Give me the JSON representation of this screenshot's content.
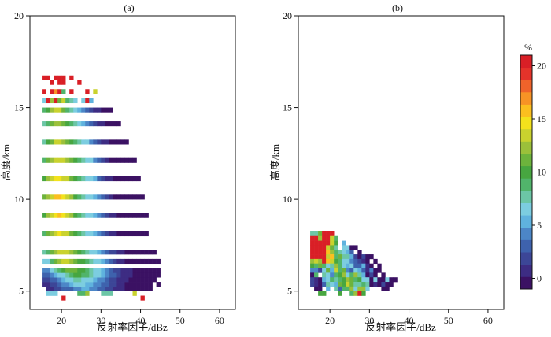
{
  "chart_data": [
    {
      "type": "heatmap",
      "panel_label": "(a)",
      "xlabel": "反射率因子/dBz",
      "ylabel": "高度/km",
      "xlim": [
        12,
        64
      ],
      "ylim": [
        4,
        20
      ],
      "x_ticks": [
        20,
        30,
        40,
        50,
        60
      ],
      "y_ticks": [
        5,
        10,
        15,
        20
      ],
      "cell_size": {
        "dbz": 1,
        "km": 0.25
      },
      "rows": [
        {
          "y": 4.75,
          "x_start": 16,
          "values": [
            7,
            7,
            7,
            null,
            null,
            null,
            null,
            null,
            9,
            9,
            12,
            null,
            null,
            null,
            8,
            8,
            8,
            null,
            null,
            null,
            null,
            null,
            13
          ]
        },
        {
          "y": 5.0,
          "x_start": 16,
          "values": [
            1,
            1,
            2,
            2,
            3,
            3,
            3,
            4,
            4,
            5,
            5,
            4,
            4,
            3,
            3,
            2,
            2,
            1,
            1,
            1,
            0,
            0,
            0,
            0,
            0,
            0,
            0
          ]
        },
        {
          "y": 5.25,
          "x_start": 15,
          "values": [
            1,
            1,
            2,
            2,
            3,
            4,
            4,
            5,
            6,
            6,
            6,
            5,
            5,
            4,
            4,
            3,
            3,
            2,
            2,
            1,
            1,
            0,
            0,
            0,
            0,
            0,
            0,
            0,
            null,
            0
          ]
        },
        {
          "y": 5.5,
          "x_start": 15,
          "values": [
            2,
            2,
            3,
            3,
            4,
            5,
            6,
            7,
            8,
            8,
            7,
            7,
            6,
            5,
            4,
            4,
            3,
            2,
            2,
            1,
            1,
            1,
            0,
            0,
            0,
            0,
            0,
            0,
            0
          ]
        },
        {
          "y": 5.75,
          "x_start": 15,
          "values": [
            3,
            3,
            4,
            5,
            6,
            7,
            8,
            9,
            10,
            10,
            9,
            9,
            8,
            7,
            6,
            5,
            4,
            3,
            3,
            2,
            1,
            1,
            1,
            0,
            0,
            0,
            0,
            0,
            0,
            0
          ]
        },
        {
          "y": 6.0,
          "x_start": 15,
          "values": [
            4,
            4,
            6,
            8,
            9,
            10,
            11,
            11,
            11,
            10,
            10,
            9,
            8,
            7,
            6,
            5,
            4,
            3,
            2,
            2,
            1,
            1,
            1,
            0,
            0,
            0,
            0,
            0,
            0,
            0
          ]
        },
        {
          "y": 6.5,
          "x_start": 15,
          "values": [
            6,
            7,
            9,
            11,
            12,
            13,
            13,
            12,
            11,
            10,
            10,
            9,
            8,
            7,
            6,
            5,
            4,
            3,
            2,
            1,
            1,
            0,
            0,
            0,
            0,
            0,
            0,
            0,
            0,
            0
          ]
        },
        {
          "y": 7.0,
          "x_start": 15,
          "values": [
            8,
            9,
            11,
            12,
            14,
            14,
            13,
            12,
            11,
            10,
            9,
            8,
            7,
            6,
            5,
            4,
            3,
            2,
            2,
            1,
            1,
            0,
            0,
            0,
            0,
            0,
            0,
            0,
            0
          ]
        },
        {
          "y": 8.0,
          "x_start": 15,
          "values": [
            9,
            11,
            12,
            14,
            15,
            14,
            13,
            11,
            10,
            9,
            8,
            7,
            6,
            5,
            4,
            3,
            2,
            1,
            1,
            0,
            0,
            0,
            0,
            0,
            0,
            0,
            0
          ]
        },
        {
          "y": 9.0,
          "x_start": 15,
          "values": [
            10,
            12,
            13,
            15,
            16,
            15,
            13,
            12,
            10,
            9,
            8,
            7,
            6,
            5,
            4,
            3,
            2,
            1,
            1,
            0,
            0,
            0,
            0,
            0,
            0,
            0,
            0
          ]
        },
        {
          "y": 10.0,
          "x_start": 15,
          "values": [
            11,
            12,
            14,
            16,
            16,
            15,
            13,
            12,
            10,
            9,
            8,
            7,
            6,
            5,
            4,
            3,
            2,
            1,
            0,
            0,
            0,
            0,
            0,
            0,
            0,
            0
          ]
        },
        {
          "y": 11.0,
          "x_start": 15,
          "values": [
            10,
            12,
            14,
            15,
            15,
            14,
            13,
            11,
            10,
            9,
            8,
            7,
            6,
            5,
            3,
            2,
            1,
            1,
            0,
            0,
            0,
            0,
            0,
            0,
            0
          ]
        },
        {
          "y": 12.0,
          "x_start": 15,
          "values": [
            9,
            11,
            12,
            14,
            14,
            13,
            12,
            11,
            10,
            9,
            8,
            7,
            6,
            4,
            3,
            2,
            1,
            0,
            0,
            0,
            0,
            0,
            0,
            0
          ]
        },
        {
          "y": 13.0,
          "x_start": 15,
          "values": [
            8,
            10,
            11,
            13,
            13,
            12,
            11,
            10,
            9,
            8,
            7,
            6,
            4,
            3,
            2,
            1,
            1,
            0,
            0,
            0,
            0,
            0
          ]
        },
        {
          "y": 14.0,
          "x_start": 15,
          "values": [
            8,
            9,
            11,
            12,
            12,
            11,
            10,
            9,
            8,
            7,
            5,
            4,
            3,
            2,
            1,
            1,
            0,
            0,
            0,
            0
          ]
        },
        {
          "y": 14.75,
          "x_start": 15,
          "values": [
            9,
            10,
            12,
            14,
            13,
            11,
            9,
            8,
            6,
            5,
            4,
            3,
            2,
            1,
            1,
            0,
            0,
            0
          ]
        },
        {
          "y": 15.25,
          "x_start": 15,
          "values": [
            7,
            20,
            12,
            20,
            11,
            14,
            9,
            8,
            7,
            null,
            7,
            20,
            5,
            null,
            null,
            null,
            null
          ]
        },
        {
          "y": 15.75,
          "x_start": 15,
          "values": [
            20,
            null,
            20,
            17,
            20,
            9,
            null,
            20,
            null,
            null,
            null,
            20,
            null,
            13
          ]
        },
        {
          "y": 16.25,
          "x_start": 15,
          "values": [
            null,
            null,
            20,
            null,
            20,
            20,
            null,
            null,
            null,
            20,
            null,
            null,
            null
          ]
        },
        {
          "y": 16.5,
          "x_start": 15,
          "values": [
            20,
            20,
            null,
            20,
            20,
            20,
            null,
            20,
            null,
            null,
            null,
            null
          ]
        },
        {
          "y": 4.5,
          "x_start": 20,
          "values": [
            20,
            null,
            null,
            null,
            null,
            null,
            null,
            null,
            null,
            null,
            null,
            null,
            null,
            null,
            null,
            null,
            null,
            null,
            null,
            null,
            20
          ]
        }
      ]
    },
    {
      "type": "heatmap",
      "panel_label": "(b)",
      "xlabel": "反射率因子/dBz",
      "ylabel": "高度/km",
      "xlim": [
        12,
        64
      ],
      "ylim": [
        4,
        20
      ],
      "x_ticks": [
        20,
        30,
        40,
        50,
        60
      ],
      "y_ticks": [
        5,
        10,
        15,
        20
      ],
      "cell_size": {
        "dbz": 1,
        "km": 0.25
      },
      "rows": [
        {
          "y": 8.0,
          "x_start": 15,
          "values": [
            8,
            8,
            11,
            20,
            20,
            20,
            null,
            null
          ]
        },
        {
          "y": 7.75,
          "x_start": 15,
          "values": [
            20,
            20,
            12,
            20,
            20,
            13,
            9,
            null
          ]
        },
        {
          "y": 7.5,
          "x_start": 15,
          "values": [
            20,
            20,
            20,
            20,
            20,
            13,
            10,
            null,
            5
          ]
        },
        {
          "y": 7.25,
          "x_start": 15,
          "values": [
            20,
            20,
            20,
            20,
            14,
            11,
            8,
            null,
            7,
            7,
            0,
            0
          ]
        },
        {
          "y": 7.0,
          "x_start": 15,
          "values": [
            20,
            20,
            20,
            20,
            16,
            12,
            9,
            8,
            6,
            5,
            3,
            null,
            0
          ]
        },
        {
          "y": 6.75,
          "x_start": 15,
          "values": [
            20,
            20,
            20,
            20,
            13,
            16,
            9,
            11,
            8,
            8,
            5,
            2,
            0,
            2,
            0,
            0
          ]
        },
        {
          "y": 6.5,
          "x_start": 15,
          "values": [
            12,
            13,
            12,
            20,
            16,
            14,
            10,
            9,
            7,
            6,
            4,
            3,
            2,
            1,
            0,
            null,
            0
          ]
        },
        {
          "y": 6.25,
          "x_start": 15,
          "values": [
            10,
            9,
            11,
            9,
            7,
            8,
            12,
            9,
            7,
            5,
            6,
            3,
            3,
            5,
            1,
            0,
            null,
            0
          ]
        },
        {
          "y": 6.0,
          "x_start": 15,
          "values": [
            4,
            4,
            2,
            7,
            11,
            5,
            13,
            9,
            11,
            4,
            3,
            6,
            5,
            3,
            1,
            4,
            0,
            0
          ]
        },
        {
          "y": 5.75,
          "x_start": 15,
          "values": [
            0,
            9,
            null,
            8,
            7,
            4,
            9,
            10,
            12,
            7,
            9,
            12,
            8,
            5,
            0,
            2,
            0,
            null,
            0
          ]
        },
        {
          "y": 5.5,
          "x_start": 15,
          "values": [
            2,
            1,
            0,
            5,
            7,
            9,
            8,
            9,
            10,
            12,
            11,
            9,
            10,
            7,
            7,
            0,
            7,
            0,
            0,
            6,
            0,
            0
          ]
        },
        {
          "y": 5.25,
          "x_start": 15,
          "values": [
            2,
            1,
            0,
            3,
            8,
            7,
            5,
            11,
            10,
            13,
            11,
            8,
            8,
            9,
            8,
            0,
            1,
            0,
            2,
            0,
            0
          ]
        },
        {
          "y": 5.0,
          "x_start": 15,
          "values": [
            null,
            0,
            0,
            null,
            5,
            null,
            8,
            3,
            9,
            9,
            12,
            7,
            12,
            12,
            6,
            null,
            null,
            null,
            0,
            0
          ]
        },
        {
          "y": 4.75,
          "x_start": 15,
          "values": [
            null,
            null,
            10,
            10,
            null,
            null,
            null,
            10,
            null,
            null,
            9,
            12,
            20,
            10,
            null,
            null,
            null,
            null
          ]
        }
      ]
    }
  ],
  "colorbar": {
    "label": "%",
    "ticks": [
      0,
      5,
      10,
      15,
      20
    ],
    "range": [
      -1,
      21
    ],
    "colors": [
      "#3b1163",
      "#3d2c83",
      "#3c4697",
      "#3e62ad",
      "#4c86c7",
      "#5fb2de",
      "#7ccde0",
      "#6cc6a6",
      "#51b46b",
      "#47a640",
      "#6db33c",
      "#9bc03a",
      "#c9d22e",
      "#f3e21c",
      "#fbbf1f",
      "#f79325",
      "#ef632a",
      "#e5332a",
      "#d91f26"
    ]
  }
}
